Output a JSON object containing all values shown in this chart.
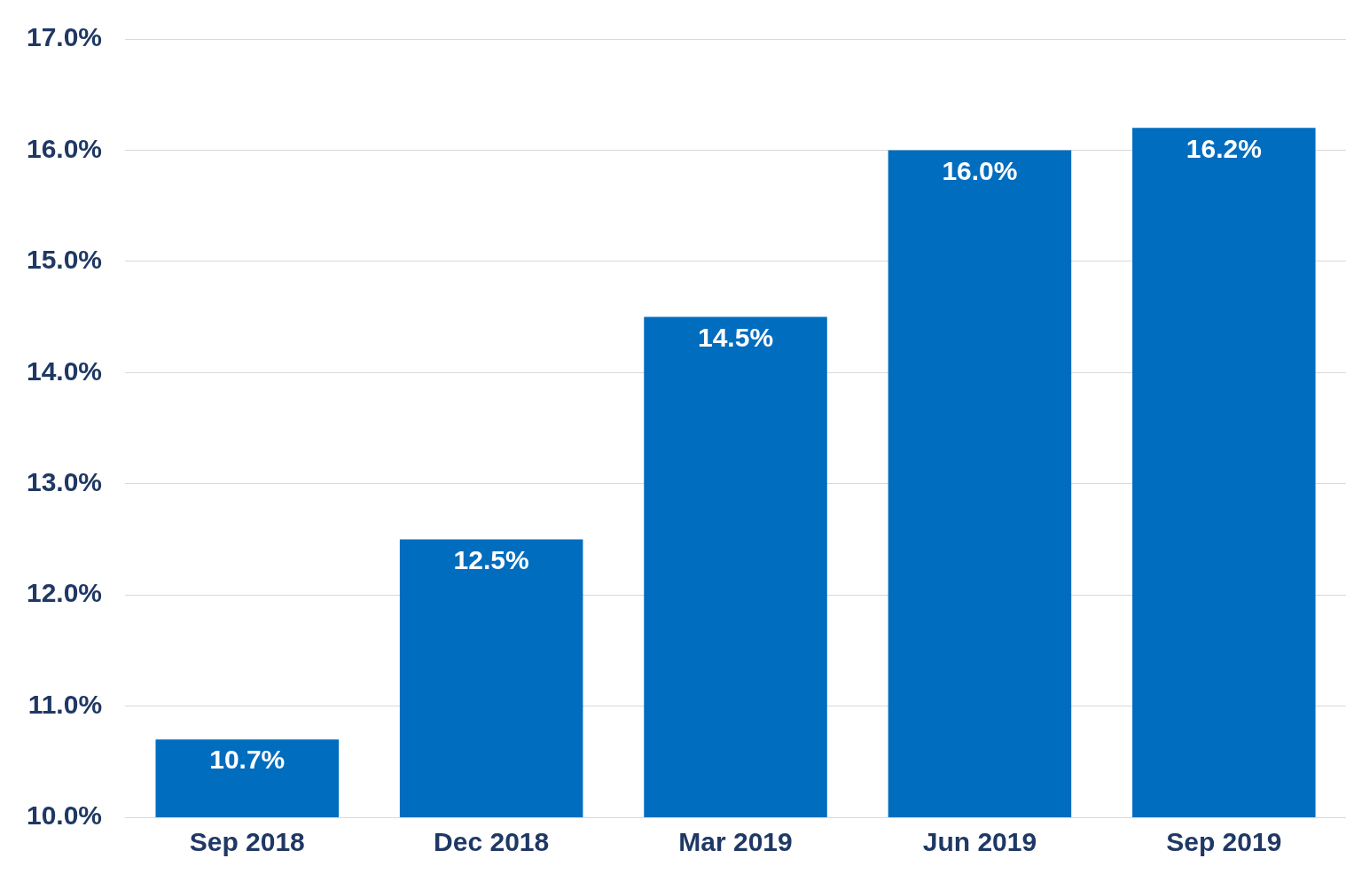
{
  "chart_data": {
    "type": "bar",
    "categories": [
      "Sep 2018",
      "Dec 2018",
      "Mar 2019",
      "Jun 2019",
      "Sep 2019"
    ],
    "values": [
      10.7,
      12.5,
      14.5,
      16.0,
      16.2
    ],
    "value_labels": [
      "10.7%",
      "12.5%",
      "14.5%",
      "16.0%",
      "16.2%"
    ],
    "color": "#006dbf",
    "ylim": [
      10,
      17
    ],
    "yticks": [
      {
        "value": 10,
        "label": "10.0%"
      },
      {
        "value": 11,
        "label": "11.0%"
      },
      {
        "value": 12,
        "label": "12.0%"
      },
      {
        "value": 13,
        "label": "13.0%"
      },
      {
        "value": 14,
        "label": "14.0%"
      },
      {
        "value": 15,
        "label": "15.0%"
      },
      {
        "value": 16,
        "label": "16.0%"
      },
      {
        "value": 17,
        "label": "17.0%"
      }
    ],
    "grid": "y",
    "legend": false
  }
}
